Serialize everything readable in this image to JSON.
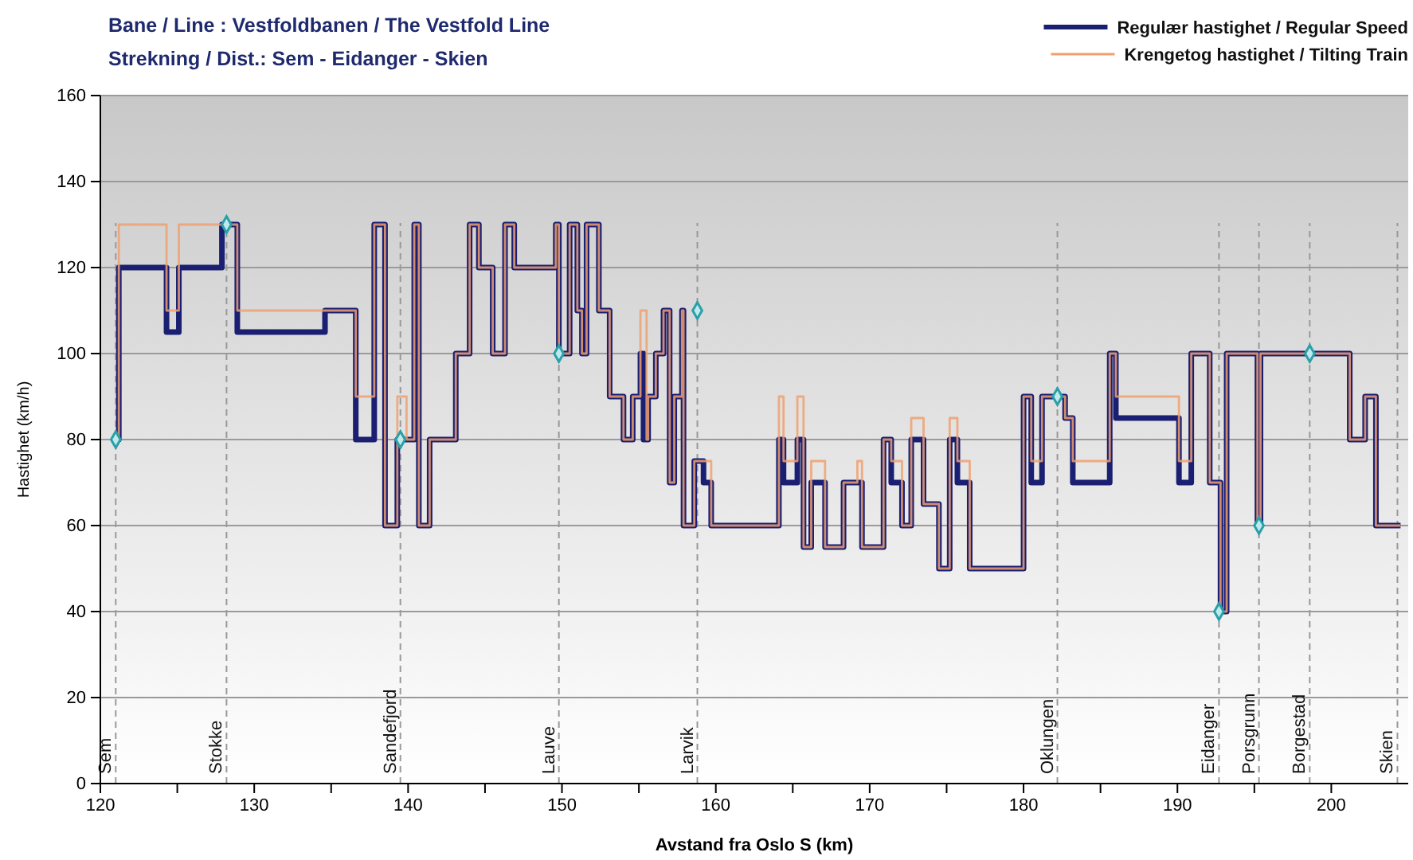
{
  "chart_data": {
    "type": "step",
    "title": "Bane / Line : Vestfoldbanen / The Vestfold Line",
    "subtitle": "Strekning / Dist.: Sem - Eidanger - Skien",
    "xlabel": "Avstand fra Oslo S (km)",
    "ylabel": "Hastighet (km/h)",
    "xlim": [
      120,
      205
    ],
    "ylim": [
      0,
      160
    ],
    "xticks": [
      120,
      {
        "value": 125,
        "label": null
      },
      130,
      {
        "value": 135,
        "label": null
      },
      140,
      {
        "value": 145,
        "label": null
      },
      150,
      {
        "value": 155,
        "label": null
      },
      160,
      {
        "value": 165,
        "label": null
      },
      170,
      {
        "value": 175,
        "label": null
      },
      180,
      {
        "value": 185,
        "label": null
      },
      190,
      {
        "value": 195,
        "label": null
      },
      200
    ],
    "yticks": [
      0,
      20,
      40,
      60,
      80,
      100,
      120,
      140,
      160
    ],
    "grid": "y",
    "legend": "top right",
    "series": [
      {
        "name": "Regulær hastighet / Regular Speed",
        "color": "#1a1f71",
        "x": [
          121.0,
          121.2,
          124.3,
          125.1,
          127.9,
          128.9,
          134.6,
          136.6,
          137.8,
          138.5,
          139.3,
          140.4,
          140.7,
          141.4,
          143.1,
          144.0,
          144.6,
          145.5,
          146.3,
          146.9,
          149.6,
          149.8,
          150.5,
          151.0,
          151.3,
          151.6,
          152.4,
          153.1,
          154.0,
          154.6,
          155.1,
          155.3,
          155.6,
          156.1,
          156.6,
          157.0,
          157.3,
          157.8,
          157.9,
          158.6,
          159.2,
          159.7,
          164.1,
          164.4,
          165.3,
          165.7,
          166.2,
          167.1,
          168.3,
          169.5,
          170.9,
          171.4,
          172.1,
          172.7,
          173.5,
          174.5,
          175.2,
          175.7,
          176.5,
          180.0,
          180.5,
          181.2,
          182.7,
          183.2,
          185.6,
          186.0,
          190.1,
          190.9,
          192.1,
          192.8,
          193.2,
          195.2,
          195.4,
          201.2,
          202.2,
          202.9,
          204.5
        ],
        "values": [
          80,
          120,
          105,
          120,
          130,
          105,
          110,
          80,
          130,
          60,
          80,
          130,
          60,
          80,
          100,
          130,
          120,
          100,
          130,
          120,
          130,
          100,
          130,
          110,
          100,
          130,
          110,
          90,
          80,
          90,
          100,
          80,
          90,
          100,
          110,
          70,
          90,
          110,
          60,
          75,
          70,
          60,
          80,
          70,
          80,
          55,
          70,
          55,
          70,
          55,
          80,
          70,
          60,
          80,
          65,
          50,
          80,
          70,
          50,
          90,
          70,
          90,
          85,
          70,
          100,
          85,
          70,
          100,
          70,
          40,
          100,
          60,
          100,
          80,
          90,
          60,
          60
        ]
      },
      {
        "name": "Krengetog hastighet / Tilting Train",
        "color": "#f0a070",
        "x": [
          121.0,
          121.2,
          124.3,
          125.1,
          128.9,
          136.6,
          137.8,
          138.5,
          139.3,
          139.9,
          140.4,
          140.7,
          141.4,
          143.1,
          144.0,
          144.6,
          145.5,
          146.3,
          146.9,
          149.6,
          149.8,
          150.5,
          151.0,
          151.3,
          151.6,
          152.4,
          153.1,
          154.0,
          154.6,
          155.1,
          155.5,
          155.6,
          156.1,
          156.6,
          157.0,
          157.3,
          157.8,
          157.9,
          158.6,
          159.7,
          164.1,
          164.4,
          165.3,
          165.7,
          166.2,
          167.1,
          168.3,
          169.2,
          169.5,
          170.9,
          171.4,
          172.1,
          172.7,
          173.5,
          174.5,
          175.2,
          175.7,
          176.5,
          180.0,
          180.5,
          181.2,
          182.7,
          183.2,
          185.6,
          186.0,
          190.1,
          190.9,
          192.1,
          192.8,
          193.2,
          195.2,
          195.4,
          201.2,
          202.2,
          202.9,
          204.5
        ],
        "values": [
          80,
          130,
          110,
          130,
          110,
          90,
          130,
          60,
          90,
          80,
          130,
          60,
          80,
          100,
          130,
          120,
          100,
          130,
          120,
          130,
          100,
          130,
          110,
          100,
          130,
          110,
          90,
          80,
          90,
          110,
          80,
          90,
          100,
          110,
          70,
          90,
          110,
          60,
          75,
          60,
          90,
          75,
          90,
          55,
          75,
          55,
          70,
          75,
          55,
          80,
          75,
          60,
          85,
          65,
          50,
          85,
          75,
          50,
          90,
          75,
          90,
          85,
          75,
          100,
          90,
          75,
          100,
          70,
          40,
          100,
          60,
          100,
          80,
          90,
          60,
          60
        ]
      },
      {
        "type": "scatter",
        "marker": "diamond",
        "color": "#2a9fa8",
        "x": [
          121.0,
          128.2,
          139.5,
          149.8,
          158.8,
          182.2,
          192.7,
          195.3,
          198.6
        ],
        "values": [
          80,
          130,
          80,
          100,
          110,
          90,
          40,
          60,
          100
        ]
      }
    ],
    "ref_lines": [
      {
        "axis": "x",
        "value": 121.0,
        "label": "Sem",
        "color": "#999999",
        "line_style": "dashed"
      },
      {
        "axis": "x",
        "value": 128.2,
        "label": "Stokke",
        "color": "#999999",
        "line_style": "dashed"
      },
      {
        "axis": "x",
        "value": 139.5,
        "label": "Sandefjord",
        "color": "#999999",
        "line_style": "dashed"
      },
      {
        "axis": "x",
        "value": 149.8,
        "label": "Lauve",
        "color": "#999999",
        "line_style": "dashed"
      },
      {
        "axis": "x",
        "value": 158.8,
        "label": "Larvik",
        "color": "#999999",
        "line_style": "dashed"
      },
      {
        "axis": "x",
        "value": 182.2,
        "label": "Oklungen",
        "color": "#999999",
        "line_style": "dashed"
      },
      {
        "axis": "x",
        "value": 192.7,
        "label": "Eidanger",
        "color": "#999999",
        "line_style": "dashed"
      },
      {
        "axis": "x",
        "value": 195.3,
        "label": "Porsgrunn",
        "color": "#999999",
        "line_style": "dashed"
      },
      {
        "axis": "x",
        "value": 198.6,
        "label": "Borgestad",
        "color": "#999999",
        "line_style": "dashed"
      },
      {
        "axis": "x",
        "value": 204.3,
        "label": "Skien",
        "color": "#999999",
        "line_style": "dashed"
      }
    ]
  }
}
